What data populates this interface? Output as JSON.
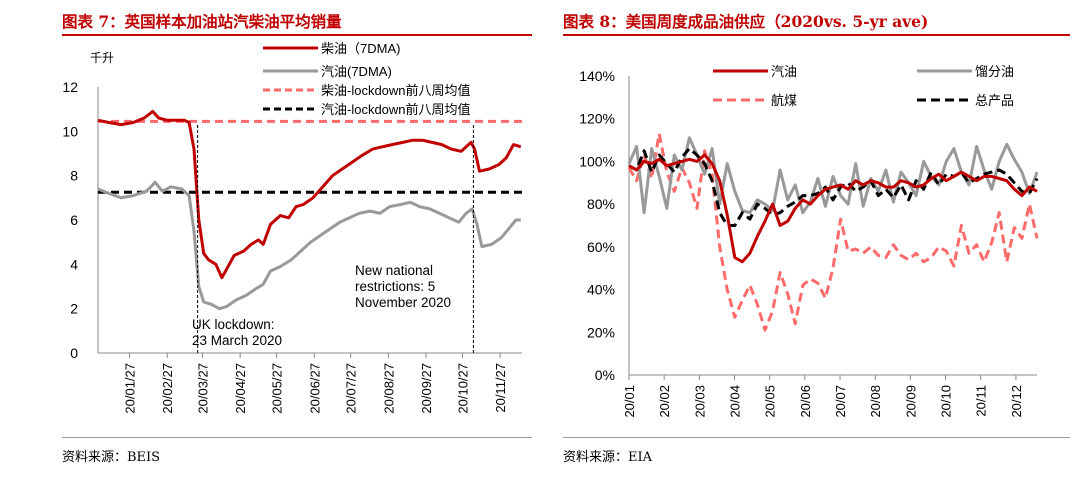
{
  "left": {
    "figure_title": "图表 7：英国样本加油站汽柴油平均销量",
    "source": "资料来源：BEIS",
    "colors": {
      "diesel": "#c00000",
      "petrol": "#999999",
      "diesel_ref": "#ff6b6b",
      "petrol_ref": "#000000"
    },
    "chart_data": {
      "type": "line",
      "ylabel": "千升",
      "ylim": [
        0,
        12
      ],
      "yticks": [
        0,
        2,
        4,
        6,
        8,
        10,
        12
      ],
      "x_range": [
        "2020-01-01",
        "2020-12-15"
      ],
      "xticks": [
        {
          "date": "2020-01-27",
          "label": "20/01/27"
        },
        {
          "date": "2020-02-27",
          "label": "20/02/27"
        },
        {
          "date": "2020-03-27",
          "label": "20/03/27"
        },
        {
          "date": "2020-04-27",
          "label": "20/04/27"
        },
        {
          "date": "2020-05-27",
          "label": "20/05/27"
        },
        {
          "date": "2020-06-27",
          "label": "20/06/27"
        },
        {
          "date": "2020-07-27",
          "label": "20/07/27"
        },
        {
          "date": "2020-08-27",
          "label": "20/08/27"
        },
        {
          "date": "2020-09-27",
          "label": "20/09/27"
        },
        {
          "date": "2020-10-27",
          "label": "20/10/27"
        },
        {
          "date": "2020-11-27",
          "label": "20/11/27"
        }
      ],
      "series": [
        {
          "name": "柴油（7DMA)",
          "color": "#c00000",
          "style": "solid",
          "points": [
            [
              "2020-01-01",
              10.5
            ],
            [
              "2020-01-10",
              10.4
            ],
            [
              "2020-01-20",
              10.3
            ],
            [
              "2020-01-30",
              10.4
            ],
            [
              "2020-02-08",
              10.6
            ],
            [
              "2020-02-15",
              10.9
            ],
            [
              "2020-02-20",
              10.6
            ],
            [
              "2020-02-27",
              10.5
            ],
            [
              "2020-03-06",
              10.5
            ],
            [
              "2020-03-12",
              10.5
            ],
            [
              "2020-03-16",
              10.4
            ],
            [
              "2020-03-20",
              9.2
            ],
            [
              "2020-03-24",
              6.0
            ],
            [
              "2020-03-28",
              4.5
            ],
            [
              "2020-04-01",
              4.2
            ],
            [
              "2020-04-07",
              4.0
            ],
            [
              "2020-04-12",
              3.4
            ],
            [
              "2020-04-16",
              3.8
            ],
            [
              "2020-04-22",
              4.4
            ],
            [
              "2020-04-30",
              4.6
            ],
            [
              "2020-05-06",
              4.9
            ],
            [
              "2020-05-12",
              5.1
            ],
            [
              "2020-05-16",
              4.9
            ],
            [
              "2020-05-22",
              5.8
            ],
            [
              "2020-05-30",
              6.2
            ],
            [
              "2020-06-06",
              6.1
            ],
            [
              "2020-06-12",
              6.6
            ],
            [
              "2020-06-18",
              6.7
            ],
            [
              "2020-06-26",
              7.0
            ],
            [
              "2020-07-04",
              7.5
            ],
            [
              "2020-07-12",
              8.0
            ],
            [
              "2020-07-20",
              8.3
            ],
            [
              "2020-07-28",
              8.6
            ],
            [
              "2020-08-05",
              8.9
            ],
            [
              "2020-08-14",
              9.2
            ],
            [
              "2020-08-22",
              9.3
            ],
            [
              "2020-08-30",
              9.4
            ],
            [
              "2020-09-08",
              9.5
            ],
            [
              "2020-09-16",
              9.6
            ],
            [
              "2020-09-24",
              9.6
            ],
            [
              "2020-10-02",
              9.5
            ],
            [
              "2020-10-10",
              9.4
            ],
            [
              "2020-10-18",
              9.2
            ],
            [
              "2020-10-26",
              9.1
            ],
            [
              "2020-10-30",
              9.3
            ],
            [
              "2020-11-03",
              9.5
            ],
            [
              "2020-11-06",
              9.2
            ],
            [
              "2020-11-10",
              8.2
            ],
            [
              "2020-11-18",
              8.3
            ],
            [
              "2020-11-26",
              8.5
            ],
            [
              "2020-12-02",
              8.8
            ],
            [
              "2020-12-08",
              9.4
            ],
            [
              "2020-12-14",
              9.3
            ]
          ]
        },
        {
          "name": "汽油(7DMA)",
          "color": "#999999",
          "style": "solid",
          "points": [
            [
              "2020-01-01",
              7.4
            ],
            [
              "2020-01-10",
              7.2
            ],
            [
              "2020-01-20",
              7.0
            ],
            [
              "2020-01-30",
              7.1
            ],
            [
              "2020-02-10",
              7.3
            ],
            [
              "2020-02-17",
              7.7
            ],
            [
              "2020-02-23",
              7.3
            ],
            [
              "2020-03-01",
              7.5
            ],
            [
              "2020-03-10",
              7.4
            ],
            [
              "2020-03-16",
              7.1
            ],
            [
              "2020-03-20",
              5.5
            ],
            [
              "2020-03-24",
              3.0
            ],
            [
              "2020-03-28",
              2.3
            ],
            [
              "2020-04-03",
              2.2
            ],
            [
              "2020-04-10",
              2.0
            ],
            [
              "2020-04-16",
              2.1
            ],
            [
              "2020-04-24",
              2.4
            ],
            [
              "2020-05-02",
              2.6
            ],
            [
              "2020-05-10",
              2.9
            ],
            [
              "2020-05-16",
              3.1
            ],
            [
              "2020-05-22",
              3.7
            ],
            [
              "2020-05-30",
              3.9
            ],
            [
              "2020-06-08",
              4.2
            ],
            [
              "2020-06-16",
              4.6
            ],
            [
              "2020-06-24",
              5.0
            ],
            [
              "2020-07-02",
              5.3
            ],
            [
              "2020-07-10",
              5.6
            ],
            [
              "2020-07-18",
              5.9
            ],
            [
              "2020-07-26",
              6.1
            ],
            [
              "2020-08-03",
              6.3
            ],
            [
              "2020-08-12",
              6.4
            ],
            [
              "2020-08-20",
              6.3
            ],
            [
              "2020-08-28",
              6.6
            ],
            [
              "2020-09-06",
              6.7
            ],
            [
              "2020-09-14",
              6.8
            ],
            [
              "2020-09-22",
              6.6
            ],
            [
              "2020-09-30",
              6.5
            ],
            [
              "2020-10-08",
              6.3
            ],
            [
              "2020-10-16",
              6.1
            ],
            [
              "2020-10-24",
              5.9
            ],
            [
              "2020-10-30",
              6.3
            ],
            [
              "2020-11-04",
              6.5
            ],
            [
              "2020-11-08",
              5.8
            ],
            [
              "2020-11-12",
              4.8
            ],
            [
              "2020-11-20",
              4.9
            ],
            [
              "2020-11-28",
              5.2
            ],
            [
              "2020-12-04",
              5.6
            ],
            [
              "2020-12-10",
              6.0
            ],
            [
              "2020-12-14",
              6.0
            ]
          ]
        },
        {
          "name": "柴油-lockdown前八周均值",
          "color": "#ff6b6b",
          "style": "dashed",
          "value": 10.45
        },
        {
          "name": "汽油-lockdown前八周均值",
          "color": "#000000",
          "style": "dashed",
          "value": 7.25
        }
      ],
      "events": [
        {
          "date": "2020-03-23",
          "text": [
            "UK lockdown:",
            "23 March 2020"
          ]
        },
        {
          "date": "2020-11-05",
          "text": [
            "New national",
            "restrictions: 5",
            "November 2020"
          ]
        }
      ],
      "legend_position": "top-right"
    }
  },
  "right": {
    "figure_title": "图表 8：美国周度成品油供应（2020vs. 5-yr ave)",
    "source": "资料来源：EIA",
    "colors": {
      "gasoline": "#c00000",
      "distillate": "#999999",
      "jet": "#ff6b6b",
      "total": "#000000"
    },
    "chart_data": {
      "type": "line",
      "ylim": [
        0,
        140
      ],
      "yticks": [
        "0%",
        "20%",
        "40%",
        "60%",
        "80%",
        "100%",
        "120%",
        "140%"
      ],
      "x_range": [
        1,
        12.6
      ],
      "xticks": [
        {
          "x": 1,
          "label": "20/01"
        },
        {
          "x": 2,
          "label": "20/02"
        },
        {
          "x": 3,
          "label": "20/03"
        },
        {
          "x": 4,
          "label": "20/04"
        },
        {
          "x": 5,
          "label": "20/05"
        },
        {
          "x": 6,
          "label": "20/06"
        },
        {
          "x": 7,
          "label": "20/07"
        },
        {
          "x": 8,
          "label": "20/08"
        },
        {
          "x": 9,
          "label": "20/09"
        },
        {
          "x": 10,
          "label": "20/10"
        },
        {
          "x": 11,
          "label": "20/11"
        },
        {
          "x": 12,
          "label": "20/12"
        }
      ],
      "series": [
        {
          "name": "汽油",
          "color": "#c00000",
          "style": "solid",
          "values": [
            98,
            96,
            100,
            99,
            101,
            98,
            99,
            100,
            101,
            100,
            103,
            99,
            91,
            75,
            55,
            53,
            57,
            65,
            72,
            80,
            70,
            72,
            78,
            82,
            80,
            84,
            87,
            88,
            89,
            87,
            91,
            89,
            91,
            90,
            88,
            88,
            91,
            90,
            88,
            89,
            92,
            94,
            91,
            93,
            95,
            93,
            91,
            93,
            93,
            92,
            91,
            87,
            84,
            88,
            86
          ]
        },
        {
          "name": "馏分油",
          "color": "#999999",
          "style": "solid",
          "values": [
            99,
            107,
            76,
            106,
            93,
            78,
            103,
            96,
            111,
            103,
            94,
            106,
            80,
            99,
            86,
            77,
            76,
            82,
            80,
            77,
            96,
            82,
            89,
            76,
            81,
            92,
            79,
            93,
            84,
            80,
            99,
            79,
            92,
            86,
            96,
            81,
            95,
            90,
            84,
            100,
            93,
            89,
            100,
            106,
            95,
            89,
            107,
            96,
            87,
            100,
            108,
            101,
            95,
            85,
            95
          ]
        },
        {
          "name": "航煤",
          "color": "#ff6b6b",
          "style": "dashed",
          "values": [
            97,
            91,
            103,
            92,
            113,
            95,
            86,
            97,
            90,
            78,
            105,
            94,
            60,
            40,
            27,
            35,
            42,
            33,
            21,
            30,
            48,
            38,
            24,
            42,
            45,
            43,
            36,
            50,
            73,
            58,
            59,
            57,
            60,
            56,
            55,
            61,
            56,
            54,
            57,
            53,
            55,
            60,
            58,
            51,
            70,
            57,
            61,
            53,
            62,
            76,
            53,
            69,
            64,
            80,
            64
          ]
        },
        {
          "name": "总产品",
          "color": "#000000",
          "style": "dashed",
          "values": [
            98,
            96,
            105,
            95,
            103,
            99,
            95,
            102,
            106,
            103,
            99,
            91,
            76,
            70,
            70,
            76,
            73,
            80,
            78,
            75,
            76,
            79,
            81,
            84,
            84,
            85,
            88,
            82,
            88,
            90,
            86,
            88,
            91,
            84,
            87,
            83,
            89,
            82,
            91,
            87,
            95,
            89,
            94,
            93,
            95,
            90,
            92,
            94,
            95,
            96,
            94,
            90,
            86,
            85,
            92
          ]
        }
      ],
      "legend_position": "top"
    }
  }
}
